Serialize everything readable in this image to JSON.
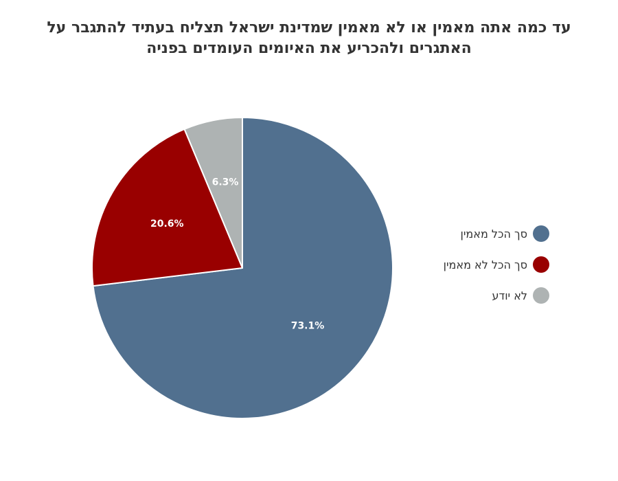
{
  "chart_data": {
    "type": "pie",
    "title": "עד כמה אתה מאמין או לא מאמין שמדינת ישראל תצליח בעתיד להתגבר על האתגרים ולהכריע את האיומים העומדים בפניה",
    "slices": [
      {
        "name": "סך הכל מאמין",
        "value": 73.1,
        "label": "73.1%",
        "color": "#51708f"
      },
      {
        "name": "סך הכל לא מאמין",
        "value": 20.6,
        "label": "20.6%",
        "color": "#990000"
      },
      {
        "name": "לא יודע",
        "value": 6.3,
        "label": "6.3%",
        "color": "#aeb3b3"
      }
    ],
    "start_angle": "12 o'clock",
    "direction": "clockwise",
    "legend": "right"
  }
}
